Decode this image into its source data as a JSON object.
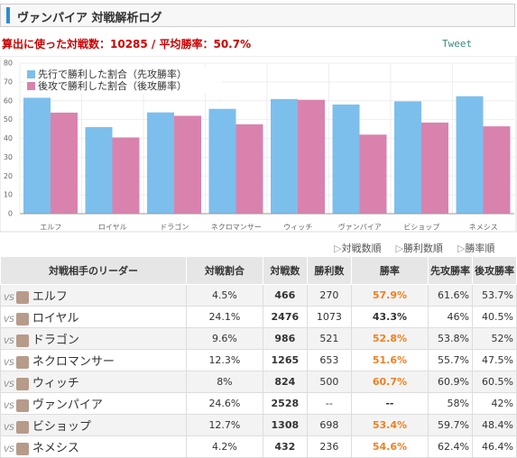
{
  "header": {
    "title": "ヴァンパイア 対戦解析ログ"
  },
  "summary": {
    "text": "算出に使った対戦数：10285 / 平均勝率：50.7%",
    "tweet": "Tweet"
  },
  "chart_data": {
    "type": "bar",
    "categories": [
      "エルフ",
      "ロイヤル",
      "ドラゴン",
      "ネクロマンサー",
      "ウィッチ",
      "ヴァンパイア",
      "ビショップ",
      "ネメシス"
    ],
    "series": [
      {
        "name": "先行で勝利した割合（先攻勝率）",
        "color": "#7cbfec",
        "values": [
          61.6,
          46,
          53.8,
          55.7,
          60.9,
          58,
          59.7,
          62.4
        ]
      },
      {
        "name": "後攻で勝利した割合（後攻勝率）",
        "color": "#d982ae",
        "values": [
          53.7,
          40.5,
          52,
          47.5,
          60.5,
          42,
          48.4,
          46.4
        ]
      }
    ],
    "ylim": [
      0,
      80
    ],
    "yticks": [
      0,
      10,
      20,
      30,
      40,
      50,
      60,
      70,
      80
    ],
    "grid": true,
    "legend": "upper-left"
  },
  "sort_links": [
    "対戦数順",
    "勝利数順",
    "勝率順"
  ],
  "table": {
    "vs_label": "VS",
    "header": [
      "対戦相手のリーダー",
      "対戦割合",
      "対戦数",
      "勝利数",
      "勝率",
      "先攻勝率",
      "後攻勝率"
    ],
    "rows": [
      [
        "エルフ",
        "4.5%",
        "466",
        "270",
        "57.9%",
        "61.6%",
        "53.7%"
      ],
      [
        "ロイヤル",
        "24.1%",
        "2476",
        "1073",
        "43.3%",
        "46%",
        "40.5%"
      ],
      [
        "ドラゴン",
        "9.6%",
        "986",
        "521",
        "52.8%",
        "53.8%",
        "52%"
      ],
      [
        "ネクロマンサー",
        "12.3%",
        "1265",
        "653",
        "51.6%",
        "55.7%",
        "47.5%"
      ],
      [
        "ウィッチ",
        "8%",
        "824",
        "500",
        "60.7%",
        "60.9%",
        "60.5%"
      ],
      [
        "ヴァンパイア",
        "24.6%",
        "2528",
        "--",
        "--",
        "58%",
        "42%"
      ],
      [
        "ビショップ",
        "12.7%",
        "1308",
        "698",
        "53.4%",
        "59.7%",
        "48.4%"
      ],
      [
        "ネメシス",
        "4.2%",
        "432",
        "236",
        "54.6%",
        "62.4%",
        "46.4%"
      ]
    ]
  }
}
